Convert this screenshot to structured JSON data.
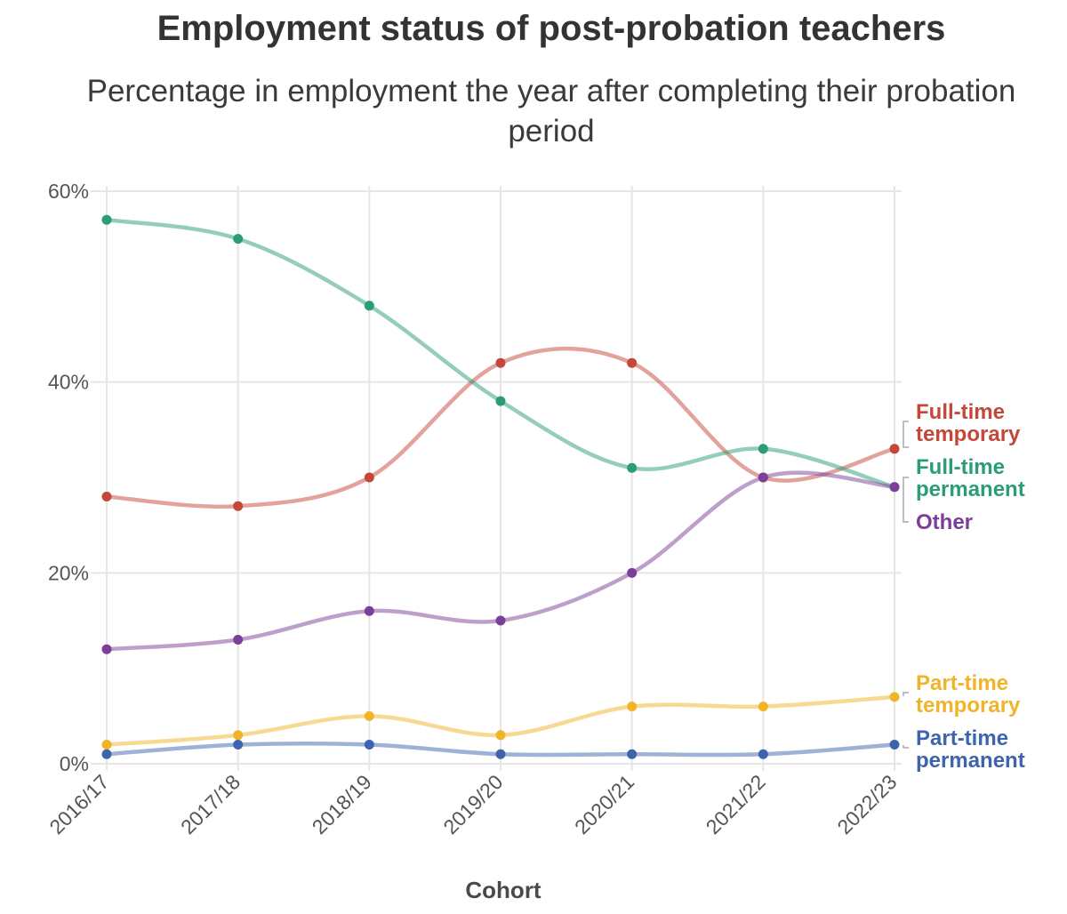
{
  "chart_data": {
    "type": "line",
    "title": "Employment status of post-probation teachers",
    "subtitle": "Percentage in employment the year after completing their probation period",
    "xlabel": "Cohort",
    "ylabel": "",
    "categories": [
      "2016/17",
      "2017/18",
      "2018/19",
      "2019/20",
      "2020/21",
      "2021/22",
      "2022/23"
    ],
    "ylim": [
      0,
      60
    ],
    "yticks": [
      "0%",
      "20%",
      "40%",
      "60%"
    ],
    "ytick_values": [
      0,
      20,
      40,
      60
    ],
    "grid": true,
    "legend": "direct labels at right end of lines",
    "series": [
      {
        "name": "Full-time temporary",
        "label_lines": [
          "Full-time",
          "temporary"
        ],
        "color": "#c4473a",
        "values": [
          28,
          27,
          30,
          42,
          42,
          30,
          33
        ]
      },
      {
        "name": "Full-time permanent",
        "label_lines": [
          "Full-time",
          "permanent"
        ],
        "color": "#2a9d75",
        "values": [
          57,
          55,
          48,
          38,
          31,
          33,
          29
        ]
      },
      {
        "name": "Other",
        "label_lines": [
          "Other"
        ],
        "color": "#7b3f98",
        "values": [
          12,
          13,
          16,
          15,
          20,
          30,
          29
        ]
      },
      {
        "name": "Part-time temporary",
        "label_lines": [
          "Part-time",
          "temporary"
        ],
        "color": "#f0b429",
        "values": [
          2,
          3,
          5,
          3,
          6,
          6,
          7
        ]
      },
      {
        "name": "Part-time permanent",
        "label_lines": [
          "Part-time",
          "permanent"
        ],
        "color": "#3d64ad",
        "values": [
          1,
          2,
          2,
          1,
          1,
          1,
          2
        ]
      }
    ]
  }
}
